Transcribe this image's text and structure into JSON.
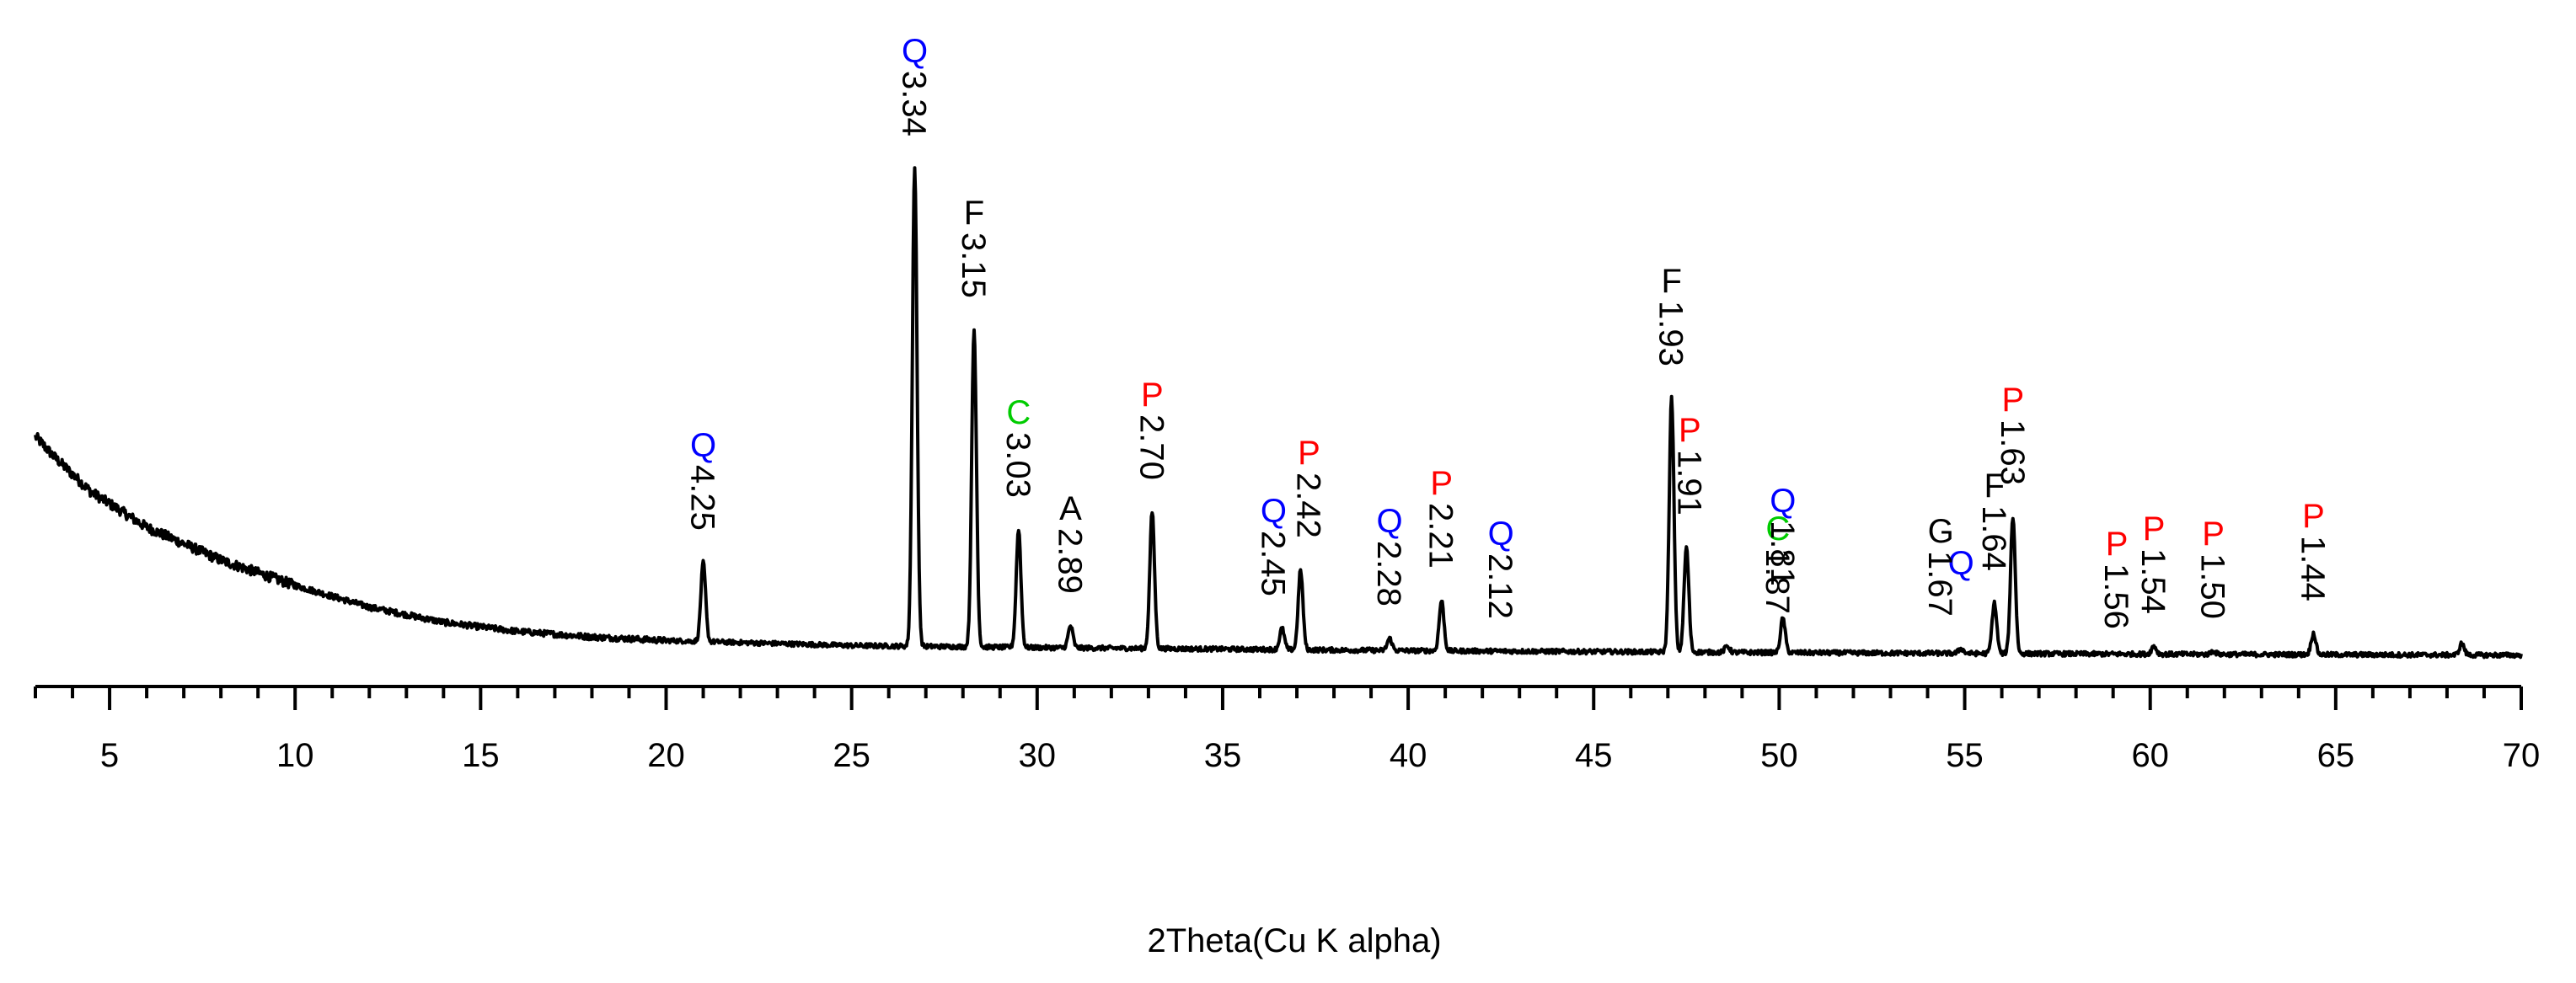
{
  "chart_data": {
    "type": "line",
    "title": "",
    "xlabel": "2Theta(Cu K alpha)",
    "ylabel": "",
    "xlim": [
      3,
      70
    ],
    "ylim": [
      0,
      100
    ],
    "grid": false,
    "legend": "none",
    "y_axis_shown": false,
    "x_ticks": [
      5,
      10,
      15,
      20,
      25,
      30,
      35,
      40,
      45,
      50,
      55,
      60,
      65,
      70
    ],
    "x_minor_step": 1,
    "phase_colors": {
      "Q": "#0000ff",
      "F": "#000000",
      "C": "#00cc00",
      "A": "#000000",
      "P": "#ff0000",
      "G": "#000000"
    },
    "background_anchors": [
      [
        3.0,
        47
      ],
      [
        3.5,
        43
      ],
      [
        4.5,
        36
      ],
      [
        6,
        29
      ],
      [
        8,
        22.5
      ],
      [
        10,
        17.5
      ],
      [
        12,
        13.2
      ],
      [
        14,
        10.2
      ],
      [
        16,
        8.4
      ],
      [
        18,
        7.3
      ],
      [
        20,
        6.6
      ],
      [
        25,
        5.6
      ],
      [
        30,
        5.2
      ],
      [
        40,
        4.6
      ],
      [
        50,
        4.2
      ],
      [
        60,
        3.9
      ],
      [
        70,
        3.7
      ]
    ],
    "noise_amplitude": 0.9,
    "peaks": [
      {
        "x": 21.0,
        "y": 22.0,
        "d": "4.25",
        "phase": "Q"
      },
      {
        "x": 26.7,
        "y": 100.0,
        "d": "3.34",
        "phase": "Q"
      },
      {
        "x": 28.3,
        "y": 68.0,
        "d": "3.15",
        "phase": "F"
      },
      {
        "x": 29.5,
        "y": 28.5,
        "d": "3.03",
        "phase": "C"
      },
      {
        "x": 30.9,
        "y": 9.5,
        "d": "2.89",
        "phase": "A"
      },
      {
        "x": 33.1,
        "y": 32.0,
        "d": "2.70",
        "phase": "P"
      },
      {
        "x": 36.6,
        "y": 9.0,
        "d": "2.45",
        "phase": "Q"
      },
      {
        "x": 37.1,
        "y": 20.5,
        "d": "2.42",
        "phase": "P"
      },
      {
        "x": 39.5,
        "y": 7.0,
        "d": "2.28",
        "phase": "Q"
      },
      {
        "x": 40.9,
        "y": 14.5,
        "d": "2.21",
        "phase": "P"
      },
      {
        "x": 42.5,
        "y": 4.5,
        "d": "2.12",
        "phase": "Q"
      },
      {
        "x": 47.1,
        "y": 54.5,
        "d": "1.93",
        "phase": "F"
      },
      {
        "x": 47.5,
        "y": 25.0,
        "d": "1.91",
        "phase": "P"
      },
      {
        "x": 48.6,
        "y": 5.5,
        "d": "1.87",
        "phase": "C"
      },
      {
        "x": 50.1,
        "y": 11.0,
        "d": "1.81",
        "phase": "Q"
      },
      {
        "x": 54.9,
        "y": 5.0,
        "d": "1.67",
        "phase": "Q"
      },
      {
        "x": 55.8,
        "y": 14.0,
        "d": "1.64",
        "phase": "F"
      },
      {
        "x": 56.3,
        "y": 31.0,
        "d": "1.63",
        "phase": "P"
      },
      {
        "x": 59.1,
        "y": 2.5,
        "d": "1.56",
        "phase": "P"
      },
      {
        "x": 60.1,
        "y": 5.5,
        "d": "1.54",
        "phase": "P"
      },
      {
        "x": 61.7,
        "y": 4.5,
        "d": "1.50",
        "phase": "P"
      },
      {
        "x": 64.4,
        "y": 8.0,
        "d": "1.44",
        "phase": "P"
      },
      {
        "x": 68.4,
        "y": 6.0,
        "d": "",
        "phase": ""
      }
    ],
    "annotations": [
      {
        "phase": "Q",
        "d": "4.25",
        "x": 21.0
      },
      {
        "phase": "Q",
        "d": "3.34",
        "x": 26.7
      },
      {
        "phase": "F",
        "d": "3.15",
        "x": 28.3
      },
      {
        "phase": "C",
        "d": "3.03",
        "x": 29.5
      },
      {
        "phase": "A",
        "d": "2.89",
        "x": 30.9
      },
      {
        "phase": "P",
        "d": "2.70",
        "x": 33.1
      },
      {
        "phase": "Q",
        "d": "2.45",
        "x": 36.6
      },
      {
        "phase": "P",
        "d": "2.42",
        "x": 37.1
      },
      {
        "phase": "Q",
        "d": "2.28",
        "x": 39.5
      },
      {
        "phase": "P",
        "d": "2.21",
        "x": 40.9
      },
      {
        "phase": "Q",
        "d": "2.12",
        "x": 42.5
      },
      {
        "phase": "F",
        "d": "1.93",
        "x": 47.1
      },
      {
        "phase": "P",
        "d": "1.91",
        "x": 47.5
      },
      {
        "phase": "C",
        "d": "1.87",
        "x": 48.6
      },
      {
        "phase": "Q",
        "d": "1.81",
        "x": 50.1
      },
      {
        "phase": "Q",
        "d": "",
        "x": 54.9
      },
      {
        "phase": "G",
        "d": "1.67",
        "x": 54.9
      },
      {
        "phase": "F",
        "d": "1.64",
        "x": 55.8
      },
      {
        "phase": "P",
        "d": "1.63",
        "x": 56.3
      },
      {
        "phase": "P",
        "d": "1.56",
        "x": 59.1
      },
      {
        "phase": "P",
        "d": "1.54",
        "x": 60.1
      },
      {
        "phase": "P",
        "d": "1.50",
        "x": 61.7
      },
      {
        "phase": "P",
        "d": "1.44",
        "x": 64.4
      }
    ]
  }
}
